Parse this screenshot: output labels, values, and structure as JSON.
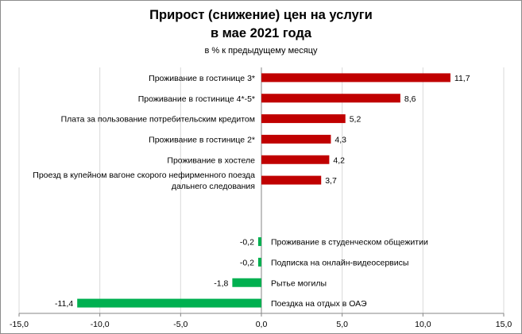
{
  "chart_data": {
    "type": "bar",
    "orientation": "horizontal",
    "title_line1": "Прирост (снижение) цен на услуги",
    "title_line2": "в мае 2021  года",
    "subtitle": "в % к предыдущему месяцу",
    "xlim": [
      -15,
      15
    ],
    "x_ticks": [
      "-15,0",
      "-10,0",
      "-5,0",
      "0,0",
      "5,0",
      "10,0",
      "15,0"
    ],
    "x_tick_values": [
      -15,
      -10,
      -5,
      0,
      5,
      10,
      15
    ],
    "grid": "vertical",
    "categories": [
      [
        "Проживание в гостинице 3*"
      ],
      [
        "Проживание в гостинице 4*-5*"
      ],
      [
        "Плата за пользование потребительским кредитом"
      ],
      [
        "Проживание в гостинице 2*"
      ],
      [
        "Проживание в хостеле"
      ],
      [
        "Проезд в купейном вагоне скорого нефирменного поезда",
        "дальнего следования"
      ],
      [],
      [],
      [
        "Проживание в студенческом общежитии"
      ],
      [
        "Подписка на онлайн-видеосервисы"
      ],
      [
        "Рытье могилы"
      ],
      [
        "Поездка на отдых в ОАЭ"
      ]
    ],
    "values": [
      11.7,
      8.6,
      5.2,
      4.3,
      4.2,
      3.7,
      null,
      null,
      -0.2,
      -0.2,
      -1.8,
      -11.4
    ],
    "value_labels": [
      "11,7",
      "8,6",
      "5,2",
      "4,3",
      "4,2",
      "3,7",
      "",
      "",
      "-0,2",
      "-0,2",
      "-1,8",
      "-11,4"
    ],
    "colors": {
      "positive": "#c00000",
      "negative": "#00b050",
      "grid": "#d9d9d9",
      "axis": "#868686"
    }
  }
}
